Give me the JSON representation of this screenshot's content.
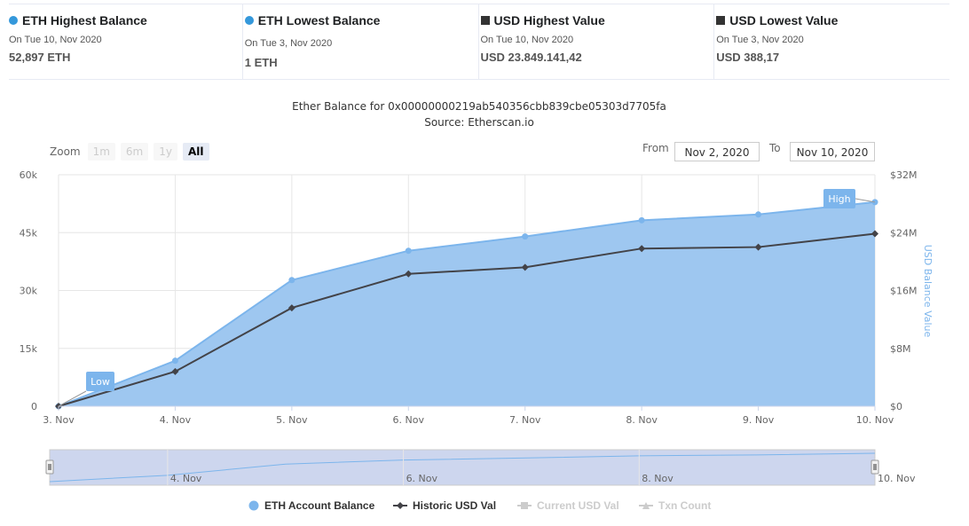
{
  "stats": [
    {
      "title": "ETH Highest Balance",
      "date": "On Tue 10, Nov 2020",
      "value": "52,897 ETH",
      "marker": "dot",
      "color": "#3498db"
    },
    {
      "title": "ETH Lowest Balance",
      "date": "On Tue 3, Nov 2020",
      "value": "1 ETH",
      "marker": "dot",
      "color": "#3498db"
    },
    {
      "title": "USD Highest Value",
      "date": "On Tue 10, Nov 2020",
      "value": "USD 23.849.141,42",
      "marker": "square",
      "color": "#333333"
    },
    {
      "title": "USD Lowest Value",
      "date": "On Tue 3, Nov 2020",
      "value": "USD 388,17",
      "marker": "square",
      "color": "#333333"
    }
  ],
  "zoom": {
    "label": "Zoom",
    "buttons": [
      "1m",
      "6m",
      "1y",
      "All"
    ],
    "active": "All"
  },
  "range": {
    "from_label": "From",
    "from_value": "Nov 2, 2020",
    "to_label": "To",
    "to_value": "Nov 10, 2020"
  },
  "chart_data": {
    "type": "area",
    "title": "Ether Balance for 0x00000000219ab540356cbb839cbe05303d7705fa",
    "subtitle": "Source: Etherscan.io",
    "categories": [
      "3. Nov",
      "4. Nov",
      "5. Nov",
      "6. Nov",
      "7. Nov",
      "8. Nov",
      "9. Nov",
      "10. Nov"
    ],
    "y_left": {
      "ticks": [
        "0",
        "15k",
        "30k",
        "45k",
        "60k"
      ],
      "ylim": [
        0,
        60000
      ]
    },
    "y_right": {
      "ticks": [
        "$0",
        "$8M",
        "$16M",
        "$24M",
        "$32M"
      ],
      "ylim": [
        0,
        32000000
      ],
      "label": "USD Balance Value"
    },
    "series": [
      {
        "name": "ETH Account Balance",
        "type": "area",
        "axis": "left",
        "color": "#7cb5ec",
        "values": [
          1,
          11800,
          32700,
          40300,
          44000,
          48200,
          49700,
          52897
        ]
      },
      {
        "name": "Historic USD Val",
        "type": "line",
        "axis": "right",
        "color": "#434348",
        "values": [
          388.17,
          4800000,
          13600000,
          18300000,
          19200000,
          21800000,
          22000000,
          23849141.42
        ]
      }
    ],
    "flags": [
      {
        "text": "Low",
        "index": 0
      },
      {
        "text": "High",
        "index": 7
      }
    ],
    "navigator": {
      "labels": [
        "4. Nov",
        "6. Nov",
        "8. Nov",
        "10. Nov"
      ]
    },
    "legend": [
      {
        "name": "ETH Account Balance",
        "marker": "circle",
        "color": "#7cb5ec",
        "enabled": true
      },
      {
        "name": "Historic USD Val",
        "marker": "diamond-line",
        "color": "#434348",
        "enabled": true
      },
      {
        "name": "Current USD Val",
        "marker": "square-line",
        "color": "#cccccc",
        "enabled": false
      },
      {
        "name": "Txn Count",
        "marker": "triangle-line",
        "color": "#cccccc",
        "enabled": false
      }
    ],
    "legend_position": "bottom",
    "grid": true
  }
}
